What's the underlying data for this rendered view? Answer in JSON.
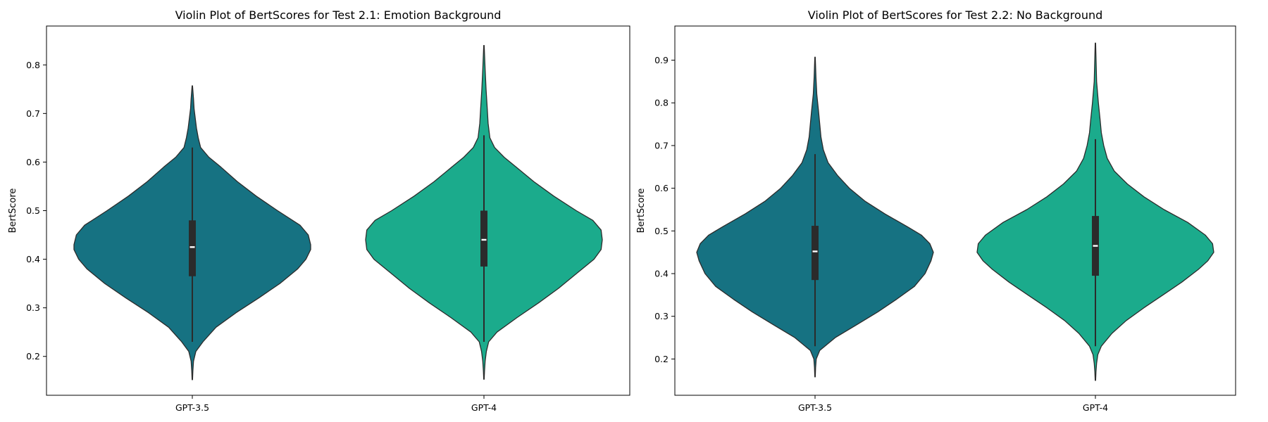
{
  "chart_data": [
    {
      "type": "violin",
      "title": "Violin Plot of BertScores for Test 2.1: Emotion Background",
      "xlabel": "",
      "ylabel": "BertScore",
      "categories": [
        "GPT-3.5",
        "GPT-4"
      ],
      "ylim": [
        0.12,
        0.88
      ],
      "yticks": [
        "0.2",
        "0.3",
        "0.4",
        "0.5",
        "0.6",
        "0.7",
        "0.8"
      ],
      "grid": false,
      "series": [
        {
          "color": "#167282",
          "min": 0.152,
          "max": 0.757,
          "q1": 0.365,
          "median": 0.425,
          "q3": 0.48,
          "whisker_low": 0.23,
          "whisker_high": 0.63,
          "density": [
            [
              0.152,
              0.002
            ],
            [
              0.17,
              0.005
            ],
            [
              0.19,
              0.01
            ],
            [
              0.21,
              0.03
            ],
            [
              0.23,
              0.09
            ],
            [
              0.26,
              0.2
            ],
            [
              0.29,
              0.37
            ],
            [
              0.32,
              0.56
            ],
            [
              0.35,
              0.74
            ],
            [
              0.38,
              0.89
            ],
            [
              0.4,
              0.96
            ],
            [
              0.42,
              1.0
            ],
            [
              0.43,
              1.0
            ],
            [
              0.45,
              0.98
            ],
            [
              0.47,
              0.91
            ],
            [
              0.5,
              0.72
            ],
            [
              0.53,
              0.54
            ],
            [
              0.56,
              0.38
            ],
            [
              0.59,
              0.24
            ],
            [
              0.61,
              0.14
            ],
            [
              0.63,
              0.07
            ],
            [
              0.65,
              0.05
            ],
            [
              0.67,
              0.035
            ],
            [
              0.69,
              0.025
            ],
            [
              0.71,
              0.015
            ],
            [
              0.73,
              0.01
            ],
            [
              0.757,
              0.002
            ]
          ]
        },
        {
          "color": "#1bab8c",
          "min": 0.153,
          "max": 0.84,
          "q1": 0.385,
          "median": 0.44,
          "q3": 0.5,
          "whisker_low": 0.23,
          "whisker_high": 0.655,
          "density": [
            [
              0.153,
              0.002
            ],
            [
              0.17,
              0.005
            ],
            [
              0.19,
              0.01
            ],
            [
              0.21,
              0.02
            ],
            [
              0.23,
              0.04
            ],
            [
              0.25,
              0.11
            ],
            [
              0.28,
              0.28
            ],
            [
              0.31,
              0.46
            ],
            [
              0.34,
              0.63
            ],
            [
              0.37,
              0.78
            ],
            [
              0.4,
              0.93
            ],
            [
              0.42,
              0.99
            ],
            [
              0.44,
              1.0
            ],
            [
              0.46,
              0.99
            ],
            [
              0.48,
              0.92
            ],
            [
              0.5,
              0.78
            ],
            [
              0.53,
              0.59
            ],
            [
              0.56,
              0.42
            ],
            [
              0.59,
              0.27
            ],
            [
              0.61,
              0.17
            ],
            [
              0.63,
              0.09
            ],
            [
              0.65,
              0.05
            ],
            [
              0.68,
              0.035
            ],
            [
              0.71,
              0.028
            ],
            [
              0.75,
              0.018
            ],
            [
              0.79,
              0.01
            ],
            [
              0.84,
              0.002
            ]
          ]
        }
      ]
    },
    {
      "type": "violin",
      "title": "Violin Plot of BertScores for Test 2.2: No Background",
      "xlabel": "",
      "ylabel": "BertScore",
      "categories": [
        "GPT-3.5",
        "GPT-4"
      ],
      "ylim": [
        0.115,
        0.98
      ],
      "yticks": [
        "0.2",
        "0.3",
        "0.4",
        "0.5",
        "0.6",
        "0.7",
        "0.8",
        "0.9"
      ],
      "grid": false,
      "series": [
        {
          "color": "#167282",
          "min": 0.158,
          "max": 0.907,
          "q1": 0.385,
          "median": 0.452,
          "q3": 0.512,
          "whisker_low": 0.23,
          "whisker_high": 0.68,
          "density": [
            [
              0.158,
              0.002
            ],
            [
              0.18,
              0.005
            ],
            [
              0.2,
              0.01
            ],
            [
              0.22,
              0.04
            ],
            [
              0.25,
              0.17
            ],
            [
              0.28,
              0.35
            ],
            [
              0.31,
              0.53
            ],
            [
              0.34,
              0.69
            ],
            [
              0.37,
              0.84
            ],
            [
              0.4,
              0.93
            ],
            [
              0.43,
              0.98
            ],
            [
              0.45,
              1.0
            ],
            [
              0.47,
              0.97
            ],
            [
              0.49,
              0.9
            ],
            [
              0.51,
              0.78
            ],
            [
              0.54,
              0.59
            ],
            [
              0.57,
              0.42
            ],
            [
              0.6,
              0.29
            ],
            [
              0.63,
              0.19
            ],
            [
              0.66,
              0.11
            ],
            [
              0.69,
              0.07
            ],
            [
              0.72,
              0.05
            ],
            [
              0.75,
              0.04
            ],
            [
              0.78,
              0.03
            ],
            [
              0.82,
              0.015
            ],
            [
              0.86,
              0.008
            ],
            [
              0.907,
              0.002
            ]
          ]
        },
        {
          "color": "#1bab8c",
          "min": 0.15,
          "max": 0.94,
          "q1": 0.395,
          "median": 0.465,
          "q3": 0.535,
          "whisker_low": 0.23,
          "whisker_high": 0.715,
          "density": [
            [
              0.15,
              0.002
            ],
            [
              0.17,
              0.005
            ],
            [
              0.19,
              0.01
            ],
            [
              0.21,
              0.02
            ],
            [
              0.23,
              0.05
            ],
            [
              0.26,
              0.14
            ],
            [
              0.29,
              0.26
            ],
            [
              0.32,
              0.41
            ],
            [
              0.35,
              0.57
            ],
            [
              0.38,
              0.73
            ],
            [
              0.41,
              0.87
            ],
            [
              0.43,
              0.95
            ],
            [
              0.45,
              1.0
            ],
            [
              0.47,
              0.99
            ],
            [
              0.49,
              0.93
            ],
            [
              0.52,
              0.78
            ],
            [
              0.55,
              0.58
            ],
            [
              0.58,
              0.41
            ],
            [
              0.61,
              0.27
            ],
            [
              0.64,
              0.16
            ],
            [
              0.67,
              0.1
            ],
            [
              0.7,
              0.07
            ],
            [
              0.73,
              0.05
            ],
            [
              0.76,
              0.04
            ],
            [
              0.8,
              0.025
            ],
            [
              0.85,
              0.01
            ],
            [
              0.94,
              0.002
            ]
          ]
        }
      ]
    }
  ]
}
